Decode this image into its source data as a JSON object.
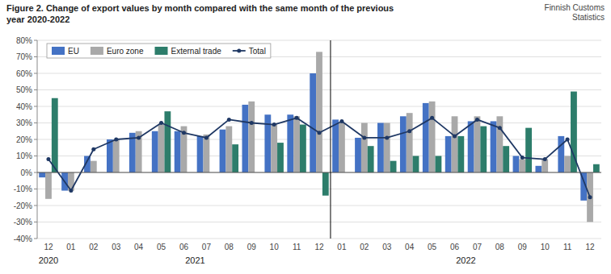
{
  "chart_data": {
    "type": "bar",
    "title": "Figure 2. Change of export values by month compared with the same month of the previous\nyear 2020-2022",
    "source": "Finnish Customs\nStatistics",
    "categories": [
      "12",
      "01",
      "02",
      "03",
      "04",
      "05",
      "06",
      "07",
      "08",
      "09",
      "10",
      "11",
      "12",
      "01",
      "02",
      "03",
      "04",
      "05",
      "06",
      "07",
      "08",
      "09",
      "10",
      "11",
      "12"
    ],
    "series": [
      {
        "name": "EU",
        "type": "bar",
        "color": "#4472C4",
        "values": [
          -3,
          -11,
          10,
          20,
          24,
          25,
          25,
          22,
          26,
          41,
          35,
          35,
          60,
          32,
          21,
          30,
          34,
          42,
          22,
          31,
          31,
          10,
          4,
          22,
          -17
        ]
      },
      {
        "name": "Euro zone",
        "type": "bar",
        "color": "#A9A9A9",
        "values": [
          -16,
          -11,
          7,
          20,
          25,
          29,
          28,
          23,
          28,
          43,
          29,
          34,
          73,
          30,
          30,
          30,
          36,
          43,
          34,
          34,
          34,
          8,
          8,
          10,
          -30
        ]
      },
      {
        "name": "External trade",
        "type": "bar",
        "color": "#2D7D6B",
        "values": [
          45,
          0,
          0,
          0,
          0,
          37,
          0,
          0,
          17,
          0,
          18,
          29,
          -14,
          0,
          16,
          7,
          10,
          10,
          22,
          28,
          16,
          27,
          0,
          49,
          5
        ]
      },
      {
        "name": "Total",
        "type": "line",
        "color": "#1F3864",
        "marker": "circle",
        "values": [
          8,
          -11,
          14,
          20,
          21,
          30,
          24,
          21,
          32,
          30,
          29,
          33,
          24,
          31,
          21,
          21,
          25,
          33,
          22,
          32,
          27,
          9,
          8,
          20,
          -15
        ]
      }
    ],
    "ylim": [
      -40,
      80
    ],
    "yticks": [
      {
        "value": -40,
        "label": "-40%"
      },
      {
        "value": -30,
        "label": "-30%"
      },
      {
        "value": -20,
        "label": "-20%"
      },
      {
        "value": -10,
        "label": "-10%"
      },
      {
        "value": 0,
        "label": "0%"
      },
      {
        "value": 10,
        "label": "10%"
      },
      {
        "value": 20,
        "label": "20%"
      },
      {
        "value": 30,
        "label": "30%"
      },
      {
        "value": 40,
        "label": "40%"
      },
      {
        "value": 50,
        "label": "50%"
      },
      {
        "value": 60,
        "label": "60%"
      },
      {
        "value": 70,
        "label": "70%"
      },
      {
        "value": 80,
        "label": "80%"
      }
    ],
    "annotations": [
      {
        "text": "2020",
        "x": 0
      },
      {
        "text": "2021",
        "x": 6.5
      },
      {
        "text": "2022",
        "x": 18.5
      },
      {
        "type": "line",
        "x": 12.5
      }
    ],
    "grid": true,
    "legend": "upper left"
  }
}
